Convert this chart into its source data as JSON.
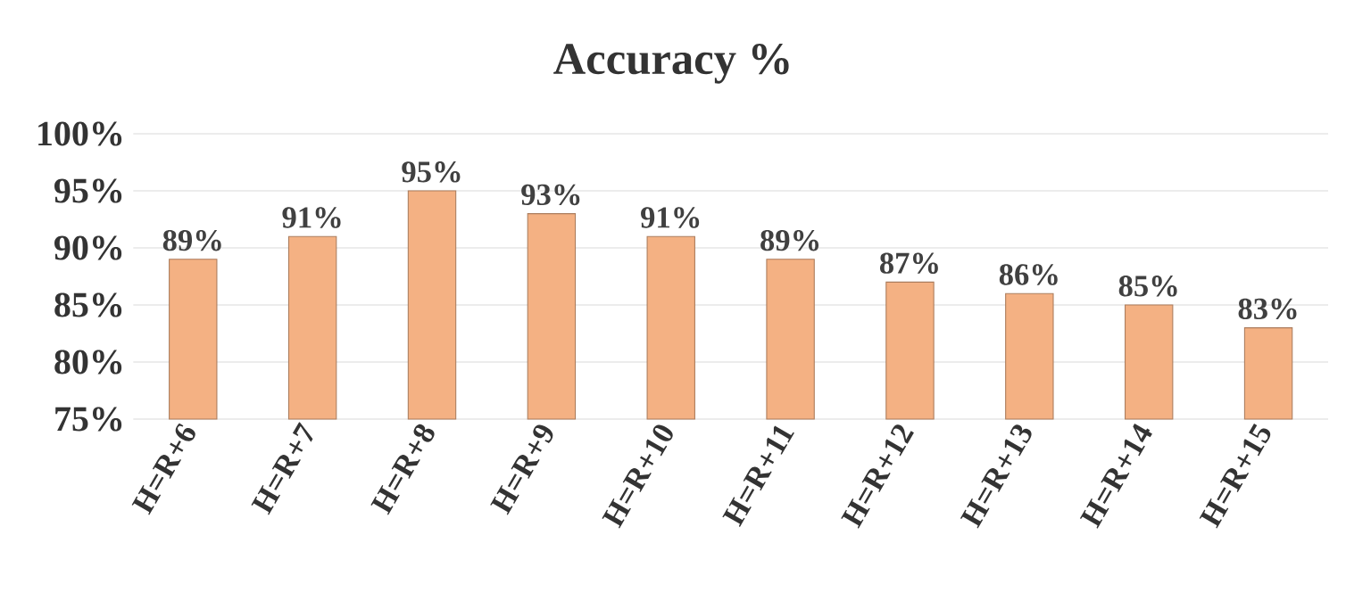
{
  "chart_data": {
    "type": "bar",
    "title": "Accuracy %",
    "categories": [
      "H=R+6",
      "H=R+7",
      "H=R+8",
      "H=R+9",
      "H=R+10",
      "H=R+11",
      "H=R+12",
      "H=R+13",
      "H=R+14",
      "H=R+15"
    ],
    "values": [
      89,
      91,
      95,
      93,
      91,
      89,
      87,
      86,
      85,
      83
    ],
    "value_labels": [
      "89%",
      "91%",
      "95%",
      "93%",
      "91%",
      "89%",
      "87%",
      "86%",
      "85%",
      "83%"
    ],
    "color": "#f4b183",
    "ylim": [
      75,
      100
    ],
    "yticks": [
      {
        "value": 75,
        "label": "75%"
      },
      {
        "value": 80,
        "label": "80%"
      },
      {
        "value": 85,
        "label": "85%"
      },
      {
        "value": 90,
        "label": "90%"
      },
      {
        "value": 95,
        "label": "95%"
      },
      {
        "value": 100,
        "label": "100%"
      }
    ],
    "grid": "y"
  }
}
